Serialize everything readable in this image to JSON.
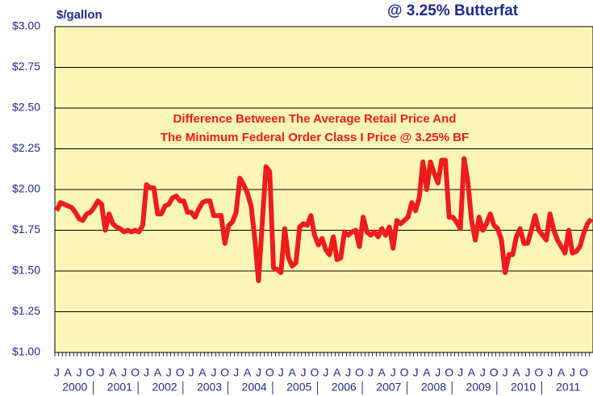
{
  "chart_data": {
    "type": "line",
    "title": "@ 3.25% Butterfat",
    "y_label": "$/gallon",
    "annotation": [
      "Difference Between The Average Retail Price And",
      "The Minimum Federal Order Class I Price @ 3.25% BF"
    ],
    "categories": [
      "J",
      null,
      null,
      "A",
      null,
      null,
      "J",
      null,
      null,
      "O",
      null,
      null,
      "J",
      null,
      null,
      "A",
      null,
      null,
      "J",
      null,
      null,
      "O",
      null,
      null,
      "J",
      null,
      null,
      "A",
      null,
      null,
      "J",
      null,
      null,
      "O",
      null,
      null,
      "J",
      null,
      null,
      "A",
      null,
      null,
      "J",
      null,
      null,
      "O",
      null,
      null,
      "J",
      null,
      null,
      "A",
      null,
      null,
      "J",
      null,
      null,
      "O",
      null,
      null,
      "J",
      null,
      null,
      "A",
      null,
      null,
      "J",
      null,
      null,
      "O",
      null,
      null,
      "J",
      null,
      null,
      "A",
      null,
      null,
      "J",
      null,
      null,
      "O",
      null,
      null,
      "J",
      null,
      null,
      "A",
      null,
      null,
      "J",
      null,
      null,
      "O",
      null,
      null,
      "J",
      null,
      null,
      "A",
      null,
      null,
      "J",
      null,
      null,
      "O",
      null,
      null,
      "J",
      null,
      null,
      "A",
      null,
      null,
      "J",
      null,
      null,
      "O",
      null,
      null,
      "J",
      null,
      null,
      "A",
      null,
      null,
      "J",
      null,
      null,
      "O",
      null,
      null,
      "J",
      null,
      null,
      "A",
      null,
      null,
      "J",
      null,
      null,
      "O",
      null,
      null
    ],
    "years": [
      "2000",
      "2001",
      "2002",
      "2003",
      "2004",
      "2005",
      "2006",
      "2007",
      "2008",
      "2009",
      "2010",
      "2011"
    ],
    "series": [
      {
        "name": "Difference",
        "color": "#ee1c1c",
        "values": [
          1.87,
          1.92,
          1.91,
          1.9,
          1.89,
          1.86,
          1.82,
          1.81,
          1.85,
          1.86,
          1.89,
          1.93,
          1.91,
          1.75,
          1.85,
          1.79,
          1.77,
          1.76,
          1.74,
          1.75,
          1.74,
          1.75,
          1.74,
          1.78,
          2.03,
          2.01,
          2.01,
          1.85,
          1.85,
          1.9,
          1.91,
          1.95,
          1.96,
          1.93,
          1.93,
          1.86,
          1.86,
          1.83,
          1.88,
          1.92,
          1.93,
          1.93,
          1.84,
          1.84,
          1.84,
          1.67,
          1.78,
          1.8,
          1.86,
          2.07,
          2.03,
          1.98,
          1.9,
          1.7,
          1.44,
          1.8,
          2.14,
          2.11,
          1.52,
          1.51,
          1.49,
          1.76,
          1.58,
          1.53,
          1.55,
          1.77,
          1.79,
          1.78,
          1.84,
          1.72,
          1.66,
          1.7,
          1.63,
          1.6,
          1.71,
          1.57,
          1.58,
          1.74,
          1.72,
          1.74,
          1.75,
          1.65,
          1.83,
          1.74,
          1.72,
          1.74,
          1.71,
          1.76,
          1.72,
          1.77,
          1.64,
          1.81,
          1.79,
          1.81,
          1.83,
          1.92,
          1.87,
          1.95,
          2.17,
          2.0,
          2.17,
          2.1,
          2.04,
          2.18,
          2.18,
          1.83,
          1.83,
          1.8,
          1.76,
          2.19,
          2.05,
          1.81,
          1.69,
          1.83,
          1.75,
          1.79,
          1.85,
          1.78,
          1.76,
          1.69,
          1.49,
          1.6,
          1.6,
          1.71,
          1.76,
          1.67,
          1.67,
          1.75,
          1.84,
          1.75,
          1.72,
          1.69,
          1.85,
          1.75,
          1.69,
          1.65,
          1.61,
          1.75,
          1.61,
          1.62,
          1.65,
          1.73,
          1.79,
          1.82
        ]
      }
    ],
    "ylim": [
      1,
      3
    ],
    "yticks": [
      {
        "value": 1,
        "label": "$1.00"
      },
      {
        "value": 1.25,
        "label": "$1.25"
      },
      {
        "value": 1.5,
        "label": "$1.50"
      },
      {
        "value": 1.75,
        "label": "$1.75"
      },
      {
        "value": 2,
        "label": "$2.00"
      },
      {
        "value": 2.25,
        "label": "$2.25"
      },
      {
        "value": 2.5,
        "label": "$2.50"
      },
      {
        "value": 2.75,
        "label": "$2.75"
      },
      {
        "value": 3,
        "label": "$3.00"
      }
    ],
    "grid": true,
    "background": "#fbf6b6"
  }
}
